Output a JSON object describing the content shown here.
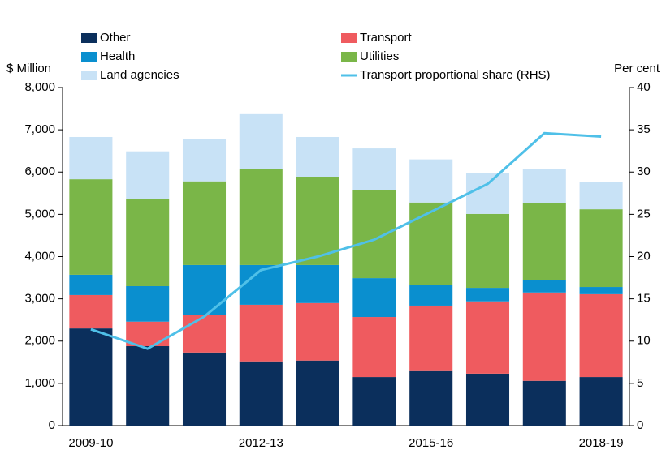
{
  "chart_data": {
    "type": "bar",
    "stacked": true,
    "y_label": "$ Million",
    "y2_label": "Per cent",
    "categories": [
      "2009-10",
      null,
      null,
      "2012-13",
      null,
      null,
      "2015-16",
      null,
      null,
      "2018-19"
    ],
    "series": [
      {
        "name": "Other",
        "color": "#0b2f5c",
        "values": [
          2300,
          1880,
          1730,
          1520,
          1540,
          1150,
          1290,
          1230,
          1060,
          1150
        ]
      },
      {
        "name": "Transport",
        "color": "#ef5b5f",
        "values": [
          790,
          580,
          880,
          1340,
          1360,
          1420,
          1550,
          1710,
          2090,
          1960
        ]
      },
      {
        "name": "Health",
        "color": "#0a8fcf",
        "values": [
          480,
          840,
          1190,
          940,
          900,
          920,
          480,
          320,
          290,
          170
        ]
      },
      {
        "name": "Utilities",
        "color": "#7ab648",
        "values": [
          2260,
          2070,
          1980,
          2280,
          2090,
          2080,
          1960,
          1750,
          1820,
          1840
        ]
      },
      {
        "name": "Land agencies",
        "color": "#c8e2f6",
        "values": [
          1000,
          1120,
          1010,
          1290,
          940,
          990,
          1020,
          960,
          820,
          640
        ]
      },
      {
        "name": "Transport proportional share (RHS)",
        "color": "#4fc0e8",
        "type": "line",
        "axis": "y2",
        "values": [
          11.4,
          9.1,
          12.9,
          18.4,
          20.0,
          22.0,
          25.3,
          28.6,
          34.6,
          34.2
        ]
      }
    ],
    "ylim": [
      0,
      8000
    ],
    "yticks": [
      0,
      {
        "value": 1000,
        "label": "1,000"
      },
      {
        "value": 2000,
        "label": "2,000"
      },
      {
        "value": 3000,
        "label": "3,000"
      },
      {
        "value": 4000,
        "label": "4,000"
      },
      {
        "value": 5000,
        "label": "5,000"
      },
      {
        "value": 6000,
        "label": "6,000"
      },
      {
        "value": 7000,
        "label": "7,000"
      },
      {
        "value": 8000,
        "label": "8,000"
      }
    ],
    "y2lim": [
      0,
      40
    ],
    "y2ticks": [
      0,
      5,
      10,
      15,
      20,
      25,
      30,
      35,
      40
    ],
    "grid": false
  }
}
